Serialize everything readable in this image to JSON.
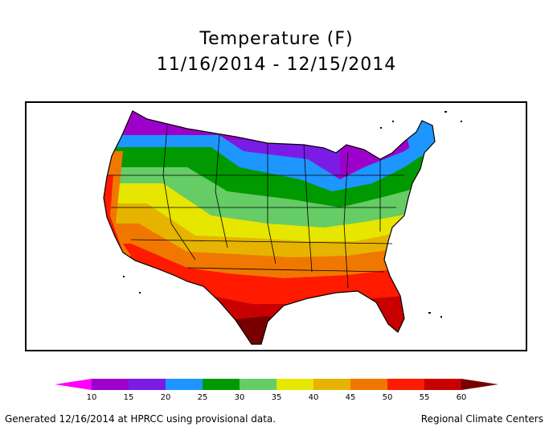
{
  "header": {
    "title": "Temperature (F)",
    "date_range": "11/16/2014 - 12/15/2014"
  },
  "legend": {
    "ticks": [
      "10",
      "15",
      "20",
      "25",
      "30",
      "35",
      "40",
      "45",
      "50",
      "55",
      "60"
    ],
    "colors": [
      "#ff00ff",
      "#9e00cc",
      "#7b1ce6",
      "#1e96ff",
      "#009a00",
      "#66cc66",
      "#e6e600",
      "#e6b400",
      "#f07800",
      "#ff1a00",
      "#c80000",
      "#780000"
    ]
  },
  "footer": {
    "left": "Generated 12/16/2014 at HPRCC using provisional data.",
    "right": "Regional Climate Centers"
  }
}
